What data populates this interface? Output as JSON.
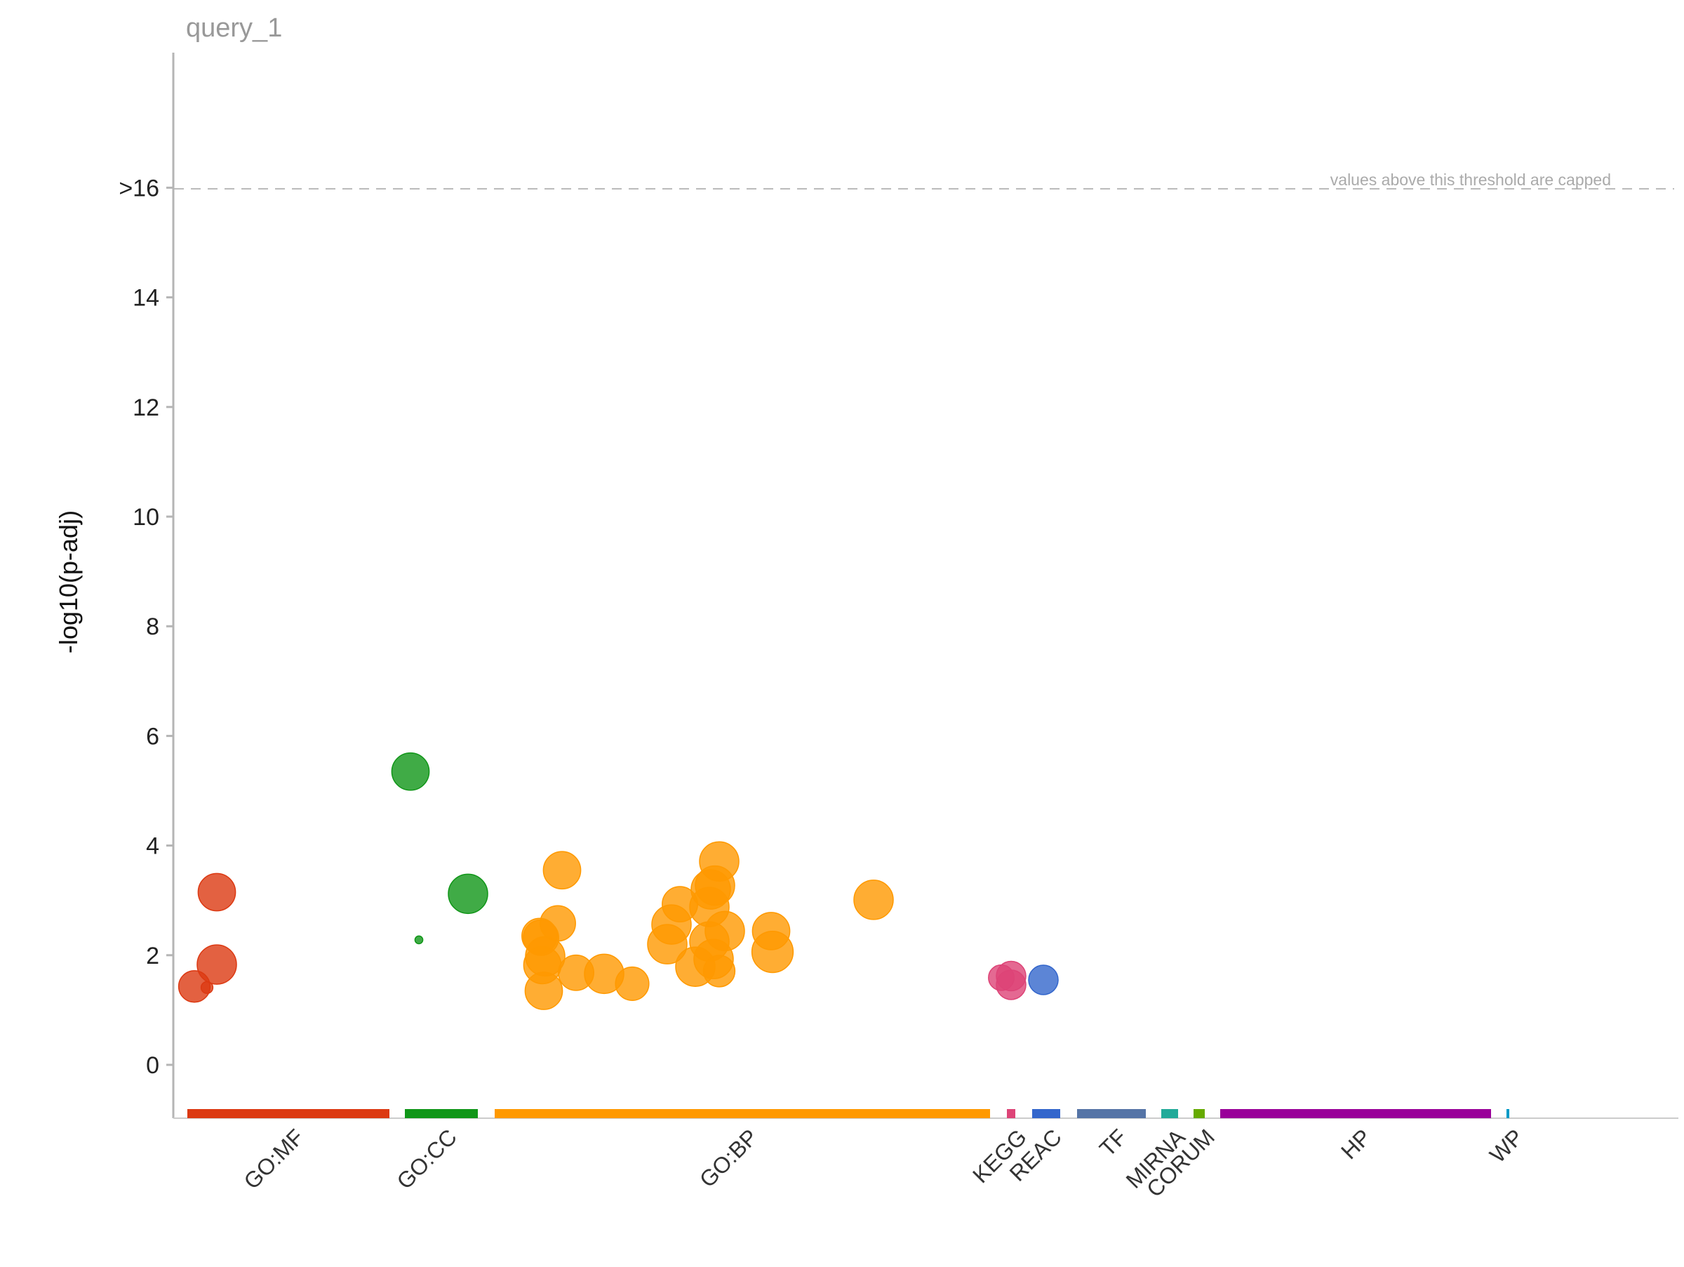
{
  "chart_data": {
    "type": "scatter",
    "title": "query_1",
    "xlabel": "",
    "ylabel": "-log10(p-adj)",
    "ylim": [
      -1,
      19
    ],
    "y_ticks": [
      {
        "value": 0,
        "label": "0"
      },
      {
        "value": 2,
        "label": "2"
      },
      {
        "value": 4,
        "label": "4"
      },
      {
        "value": 6,
        "label": "6"
      },
      {
        "value": 8,
        "label": "8"
      },
      {
        "value": 10,
        "label": "10"
      },
      {
        "value": 12,
        "label": "12"
      },
      {
        "value": 14,
        "label": "14"
      },
      {
        "value": 16,
        "label": ">16"
      }
    ],
    "threshold": {
      "value": 16,
      "label": "values above this threshold are capped"
    },
    "grid": false,
    "x_range": [
      0,
      1000
    ],
    "sources": [
      {
        "name": "GO:MF",
        "start": 10,
        "end": 154,
        "color": "#dc3912"
      },
      {
        "name": "GO:CC",
        "start": 165,
        "end": 217,
        "color": "#109618"
      },
      {
        "name": "GO:BP",
        "start": 229,
        "end": 582,
        "color": "#ff9900"
      },
      {
        "name": "KEGG",
        "start": 594,
        "end": 600,
        "color": "#dd4477"
      },
      {
        "name": "REAC",
        "start": 612,
        "end": 632,
        "color": "#3366cc"
      },
      {
        "name": "TF",
        "start": 644,
        "end": 693,
        "color": "#5574a6"
      },
      {
        "name": "MIRNA",
        "start": 704,
        "end": 716,
        "color": "#22aa99"
      },
      {
        "name": "CORUM",
        "start": 727,
        "end": 735,
        "color": "#66aa00"
      },
      {
        "name": "HP",
        "start": 746,
        "end": 939,
        "color": "#990099"
      },
      {
        "name": "WP",
        "start": 950,
        "end": 952,
        "color": "#0099c6"
      }
    ],
    "series": [
      {
        "source": "GO:MF",
        "x": [
          15,
          24,
          31,
          31
        ],
        "y": [
          1.43,
          1.41,
          1.83,
          3.15
        ],
        "size": [
          0.8,
          0.3,
          1.0,
          0.95
        ]
      },
      {
        "source": "GO:CC",
        "x": [
          169,
          175,
          210
        ],
        "y": [
          5.35,
          2.28,
          3.12
        ],
        "size": [
          0.95,
          0.2,
          1.0
        ]
      },
      {
        "source": "GO:BP",
        "x": [
          261,
          262,
          263,
          264,
          265,
          274,
          277,
          287,
          307,
          327,
          352,
          355,
          361,
          372,
          382,
          382,
          383,
          385,
          386,
          389,
          389,
          393,
          426,
          427,
          499
        ],
        "y": [
          2.35,
          2.32,
          1.82,
          1.35,
          1.98,
          2.58,
          3.55,
          1.68,
          1.66,
          1.48,
          2.2,
          2.56,
          2.93,
          1.79,
          2.25,
          2.88,
          3.2,
          1.93,
          3.27,
          1.71,
          3.71,
          2.44,
          2.44,
          2.06,
          3.01
        ],
        "size": [
          0.9,
          0.9,
          0.95,
          0.95,
          1.0,
          0.9,
          0.95,
          0.9,
          1.0,
          0.85,
          1.0,
          1.0,
          0.9,
          1.0,
          1.0,
          1.0,
          1.0,
          1.0,
          1.0,
          0.8,
          1.0,
          1.0,
          0.95,
          1.05,
          1.0
        ]
      },
      {
        "source": "KEGG",
        "x": [
          590
        ],
        "y": [
          1.59
        ],
        "size": [
          0.65
        ]
      },
      {
        "source": "KEGG",
        "x": [
          597,
          597
        ],
        "y": [
          1.62,
          1.46
        ],
        "size": [
          0.75,
          0.75
        ]
      },
      {
        "source": "REAC",
        "x": [
          620
        ],
        "y": [
          1.55
        ],
        "size": [
          0.75
        ]
      }
    ]
  }
}
